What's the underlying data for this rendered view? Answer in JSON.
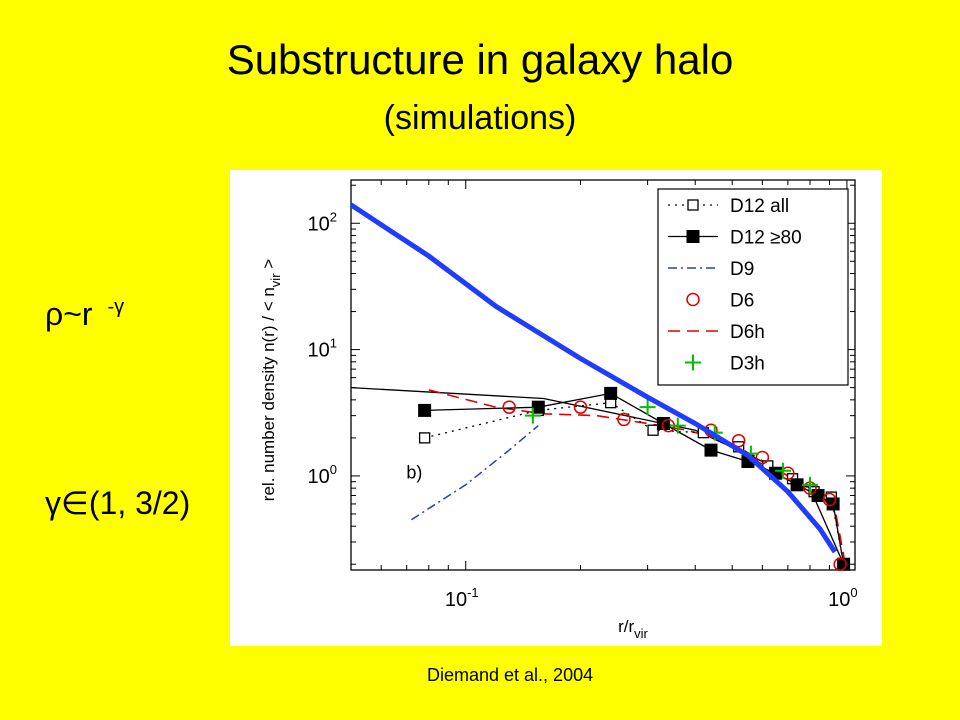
{
  "slide": {
    "title": "Substructure in galaxy halo",
    "subtitle": "(simulations)",
    "eq_rho_text": "ρ~r ",
    "eq_rho_exp": "-γ",
    "eq_gamma": "γ∈(1, 3/2)",
    "citation": "Diemand et al., 2004"
  },
  "chart_data": {
    "type": "line",
    "xscale": "log",
    "yscale": "log",
    "xlim": [
      0.05,
      1.05
    ],
    "ylim": [
      0.18,
      220
    ],
    "xlabel_main": "r/r",
    "xlabel_sub": "vir",
    "ylabel_main": "rel. number density  n(r) / < n",
    "ylabel_sub": "vir",
    "ylabel_end": " >",
    "xticks": [
      {
        "value": 0.1,
        "base": "10",
        "exp": "-1"
      },
      {
        "value": 1.0,
        "base": "10",
        "exp": "0"
      }
    ],
    "yticks": [
      {
        "value": 1,
        "base": "10",
        "exp": "0"
      },
      {
        "value": 10,
        "base": "10",
        "exp": "1"
      },
      {
        "value": 100,
        "base": "10",
        "exp": "2"
      }
    ],
    "panel_label": "b)",
    "legend_position": "top-right",
    "colors": {
      "blue_fit": "#1f3cff",
      "d9": "#2040c0",
      "d6": "#e00000",
      "d3h": "#00c000",
      "black": "#000000"
    },
    "series": [
      {
        "name": "D12 all",
        "x": [
          0.078,
          0.155,
          0.24,
          0.31,
          0.42,
          0.52,
          0.62,
          0.72,
          0.82,
          0.91,
          0.98
        ],
        "y": [
          2.0,
          3.3,
          3.8,
          2.3,
          2.2,
          1.7,
          1.2,
          0.95,
          0.75,
          0.68,
          0.2
        ]
      },
      {
        "name": "D12 ≥80",
        "x": [
          0.078,
          0.155,
          0.24,
          0.33,
          0.44,
          0.55,
          0.65,
          0.74,
          0.84,
          0.92,
          0.98
        ],
        "y": [
          3.3,
          3.5,
          4.5,
          2.6,
          1.6,
          1.3,
          1.05,
          0.85,
          0.7,
          0.6,
          0.2
        ]
      },
      {
        "name": "D9",
        "x": [
          0.072,
          0.1,
          0.13,
          0.155
        ],
        "y": [
          0.45,
          0.85,
          1.6,
          2.5
        ]
      },
      {
        "name": "D6",
        "x": [
          0.13,
          0.2,
          0.26,
          0.34,
          0.44,
          0.52,
          0.6,
          0.7,
          0.8,
          0.9,
          0.96
        ],
        "y": [
          3.5,
          3.5,
          2.8,
          2.5,
          2.3,
          1.9,
          1.4,
          1.05,
          0.8,
          0.65,
          0.2
        ]
      },
      {
        "name": "D6h",
        "x": [
          0.08,
          0.12,
          0.16,
          0.22,
          0.3,
          0.38,
          0.48,
          0.58,
          0.7,
          0.82,
          0.93,
          0.99
        ],
        "y": [
          4.8,
          3.5,
          3.1,
          3.0,
          2.6,
          2.3,
          1.9,
          1.4,
          1.0,
          0.75,
          0.55,
          0.2
        ]
      },
      {
        "name": "D3h",
        "x": [
          0.15,
          0.3,
          0.36,
          0.45,
          0.56,
          0.68,
          0.8
        ],
        "y": [
          3.0,
          3.5,
          2.5,
          2.2,
          1.5,
          1.1,
          0.85
        ]
      },
      {
        "name": "",
        "x": [
          0.05,
          0.16,
          0.4,
          0.6,
          0.8,
          0.98
        ],
        "y": [
          5.0,
          4.1,
          2.3,
          1.3,
          0.8,
          0.2
        ]
      },
      {
        "name": "",
        "x": [
          0.05,
          0.08,
          0.12,
          0.2,
          0.3,
          0.4,
          0.55,
          0.7,
          0.85,
          0.93
        ],
        "y": [
          140,
          55,
          22,
          8.5,
          4.2,
          2.6,
          1.45,
          0.75,
          0.38,
          0.25
        ]
      }
    ]
  }
}
